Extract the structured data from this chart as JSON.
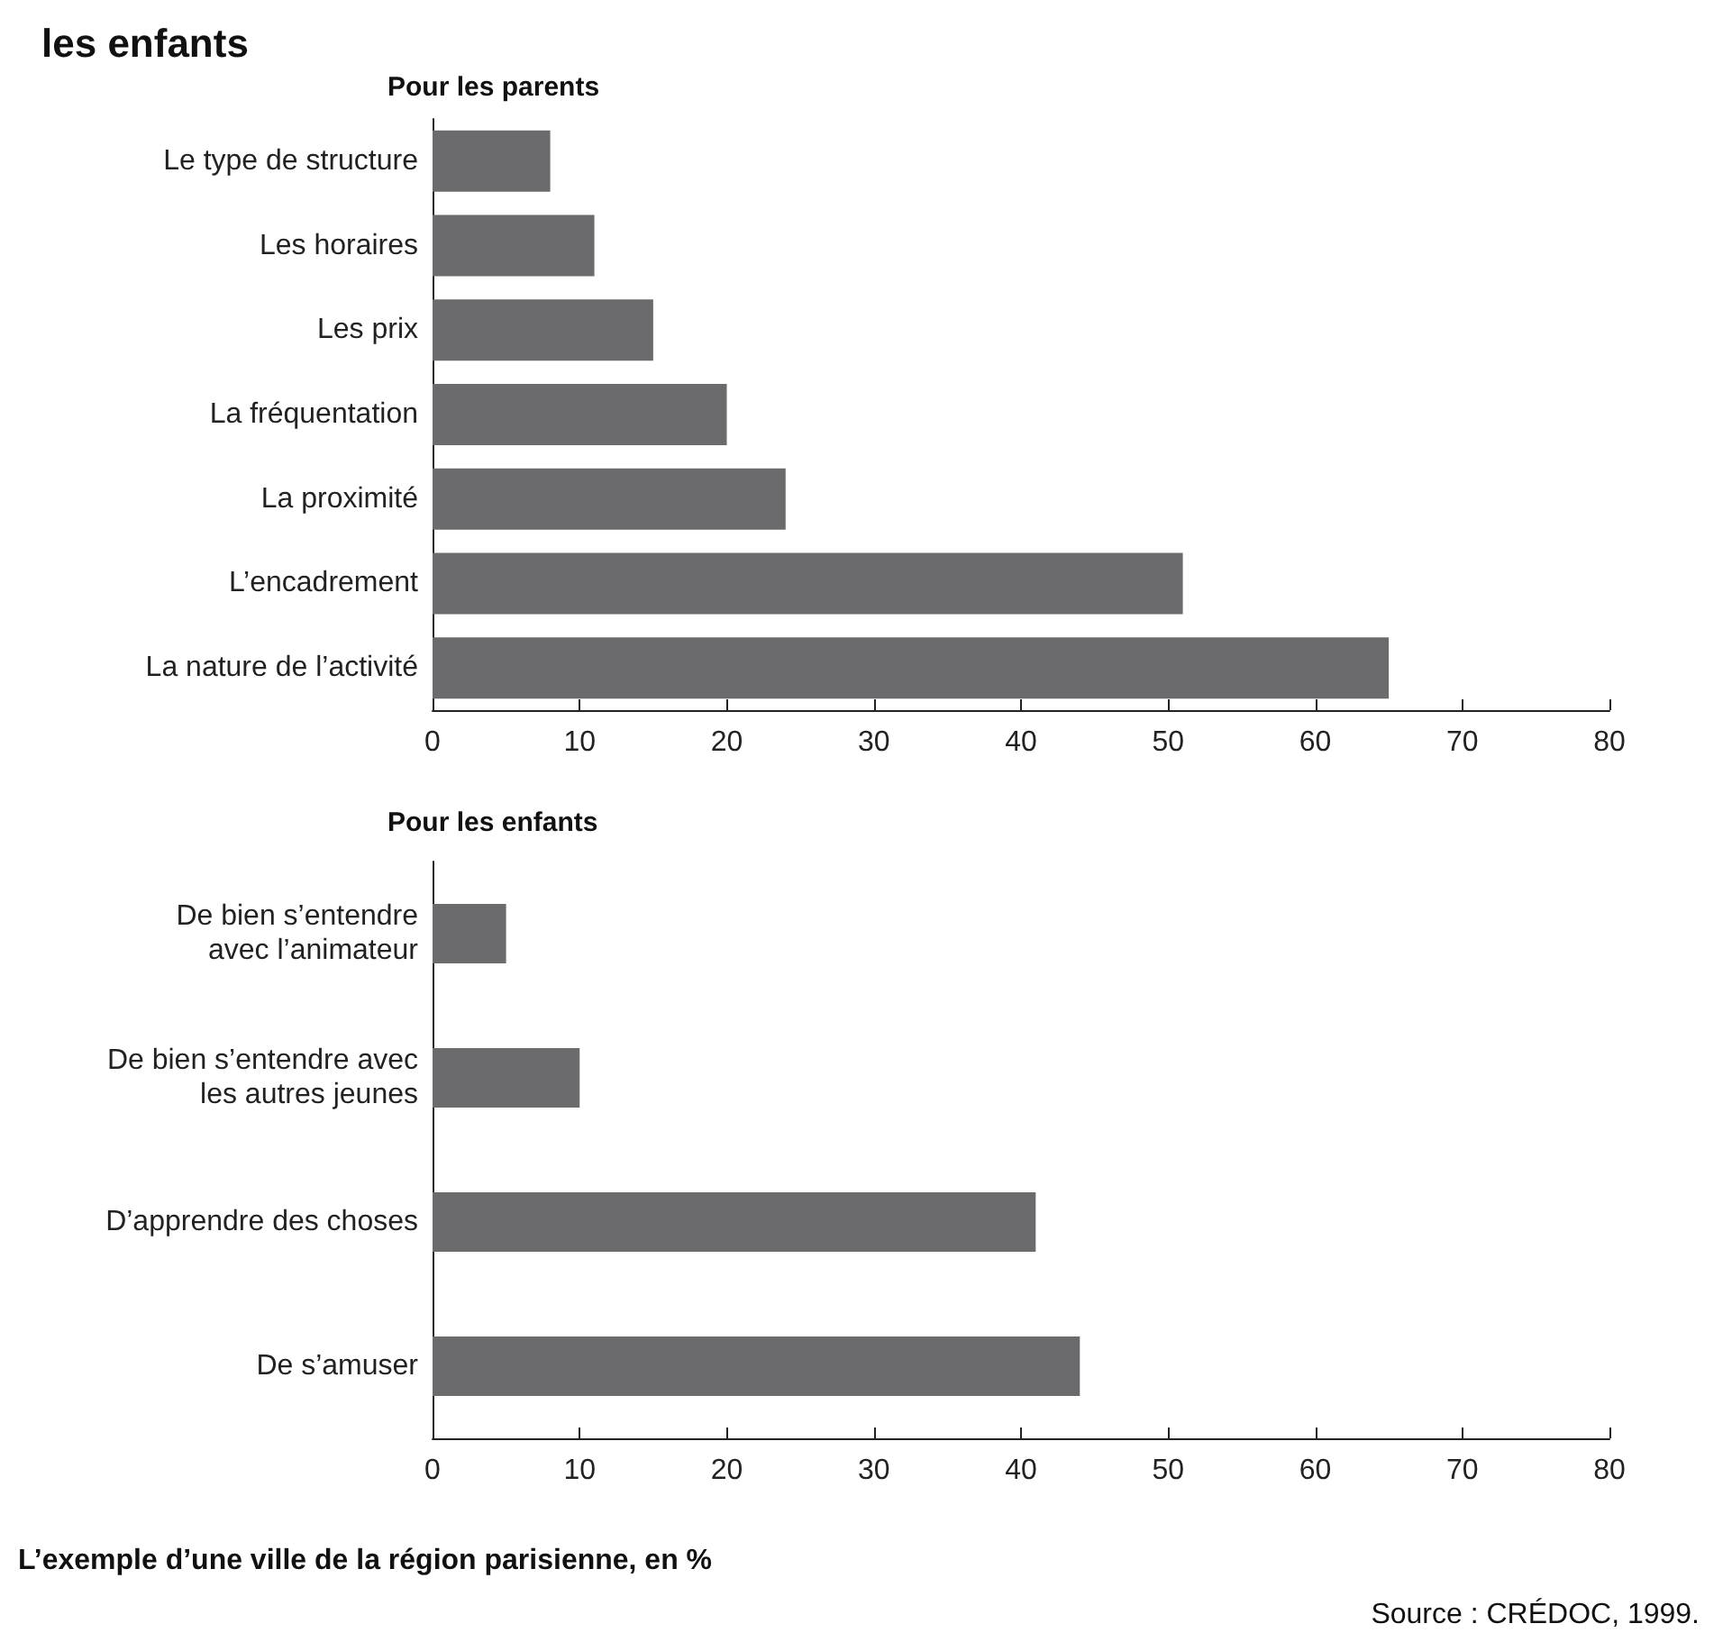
{
  "chart_data": [
    {
      "type": "bar",
      "orientation": "horizontal",
      "title": "les enfants",
      "subtitle": "Pour les parents",
      "categories": [
        "Le type de structure",
        "Les horaires",
        "Les prix",
        "La fréquentation",
        "La proximité",
        "L’encadrement",
        "La nature de l’activité"
      ],
      "values": [
        8,
        11,
        15,
        20,
        24,
        51,
        65
      ],
      "color": "#6b6b6d",
      "xlim": [
        0,
        80
      ],
      "xticks": [
        0,
        10,
        20,
        30,
        40,
        50,
        60,
        70,
        80
      ],
      "grid": false
    },
    {
      "type": "bar",
      "orientation": "horizontal",
      "title": "Pour les enfants",
      "categories": [
        "De bien s’entendre\navec l’animateur",
        "De bien s’entendre avec\nles autres jeunes",
        "D’apprendre des choses",
        "De s’amuser"
      ],
      "values": [
        5,
        10,
        41,
        44
      ],
      "color": "#6b6b6d",
      "xlim": [
        0,
        80
      ],
      "xticks": [
        0,
        10,
        20,
        30,
        40,
        50,
        60,
        70,
        80
      ],
      "grid": false,
      "annotations": [
        "L’exemple d’une ville de la région parisienne, en %",
        "Source : CRÉDOC, 1999."
      ]
    }
  ]
}
